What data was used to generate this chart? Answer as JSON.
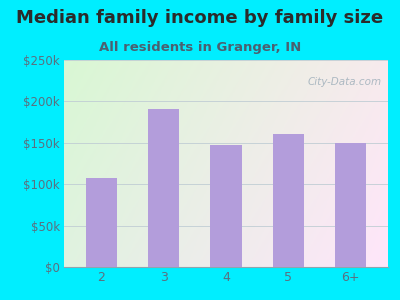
{
  "title": "Median family income by family size",
  "subtitle": "All residents in Granger, IN",
  "categories": [
    "2",
    "3",
    "4",
    "5",
    "6+"
  ],
  "values": [
    107000,
    191000,
    147000,
    161000,
    150000
  ],
  "bar_color": "#b39ddb",
  "background_outer": "#00eeff",
  "title_color": "#2b2b2b",
  "subtitle_color": "#4a6070",
  "tick_color": "#5a7080",
  "ylim": [
    0,
    250000
  ],
  "yticks": [
    0,
    50000,
    100000,
    150000,
    200000,
    250000
  ],
  "ytick_labels": [
    "$0",
    "$50k",
    "$100k",
    "$150k",
    "$200k",
    "$250k"
  ],
  "title_fontsize": 13,
  "subtitle_fontsize": 9.5,
  "watermark": "City-Data.com"
}
